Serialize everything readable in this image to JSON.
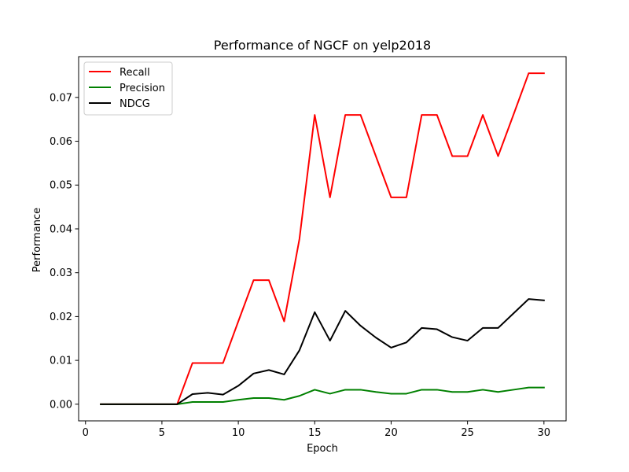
{
  "chart_data": {
    "type": "line",
    "title": "Performance of NGCF on yelp2018",
    "xlabel": "Epoch",
    "ylabel": "Performance",
    "xlim": [
      -0.45,
      31.45
    ],
    "ylim": [
      -0.0038,
      0.0793
    ],
    "xticks": [
      0,
      5,
      10,
      15,
      20,
      25,
      30
    ],
    "yticks": [
      0.0,
      0.01,
      0.02,
      0.03,
      0.04,
      0.05,
      0.06,
      0.07
    ],
    "ytick_labels": [
      "0.00",
      "0.01",
      "0.02",
      "0.03",
      "0.04",
      "0.05",
      "0.06",
      "0.07"
    ],
    "grid": false,
    "legend_position": "top-left",
    "x": [
      1,
      2,
      3,
      4,
      5,
      6,
      7,
      8,
      9,
      10,
      11,
      12,
      13,
      14,
      15,
      16,
      17,
      18,
      19,
      20,
      21,
      22,
      23,
      24,
      25,
      26,
      27,
      28,
      29,
      30
    ],
    "series": [
      {
        "name": "Recall",
        "color": "#ff0000",
        "values": [
          0,
          0,
          0,
          0,
          0,
          0,
          0.0094,
          0.0094,
          0.0094,
          0.0189,
          0.0283,
          0.0283,
          0.0189,
          0.0377,
          0.066,
          0.0472,
          0.066,
          0.066,
          0.0566,
          0.0472,
          0.0472,
          0.066,
          0.066,
          0.0566,
          0.0566,
          0.066,
          0.0566,
          0.066,
          0.0755,
          0.0755
        ]
      },
      {
        "name": "Precision",
        "color": "#008000",
        "values": [
          0,
          0,
          0,
          0,
          0,
          0,
          0.0005,
          0.0005,
          0.0005,
          0.001,
          0.0014,
          0.0014,
          0.001,
          0.0019,
          0.0033,
          0.0024,
          0.0033,
          0.0033,
          0.0028,
          0.0024,
          0.0024,
          0.0033,
          0.0033,
          0.0028,
          0.0028,
          0.0033,
          0.0028,
          0.0033,
          0.0038,
          0.0038
        ]
      },
      {
        "name": "NDCG",
        "color": "#000000",
        "values": [
          0,
          0,
          0,
          0,
          0,
          0,
          0.0023,
          0.0026,
          0.0022,
          0.0042,
          0.007,
          0.0078,
          0.0068,
          0.0123,
          0.021,
          0.0145,
          0.0213,
          0.0179,
          0.0152,
          0.0129,
          0.0141,
          0.0174,
          0.0171,
          0.0153,
          0.0145,
          0.0174,
          0.0174,
          0.0207,
          0.024,
          0.0237
        ]
      }
    ]
  }
}
